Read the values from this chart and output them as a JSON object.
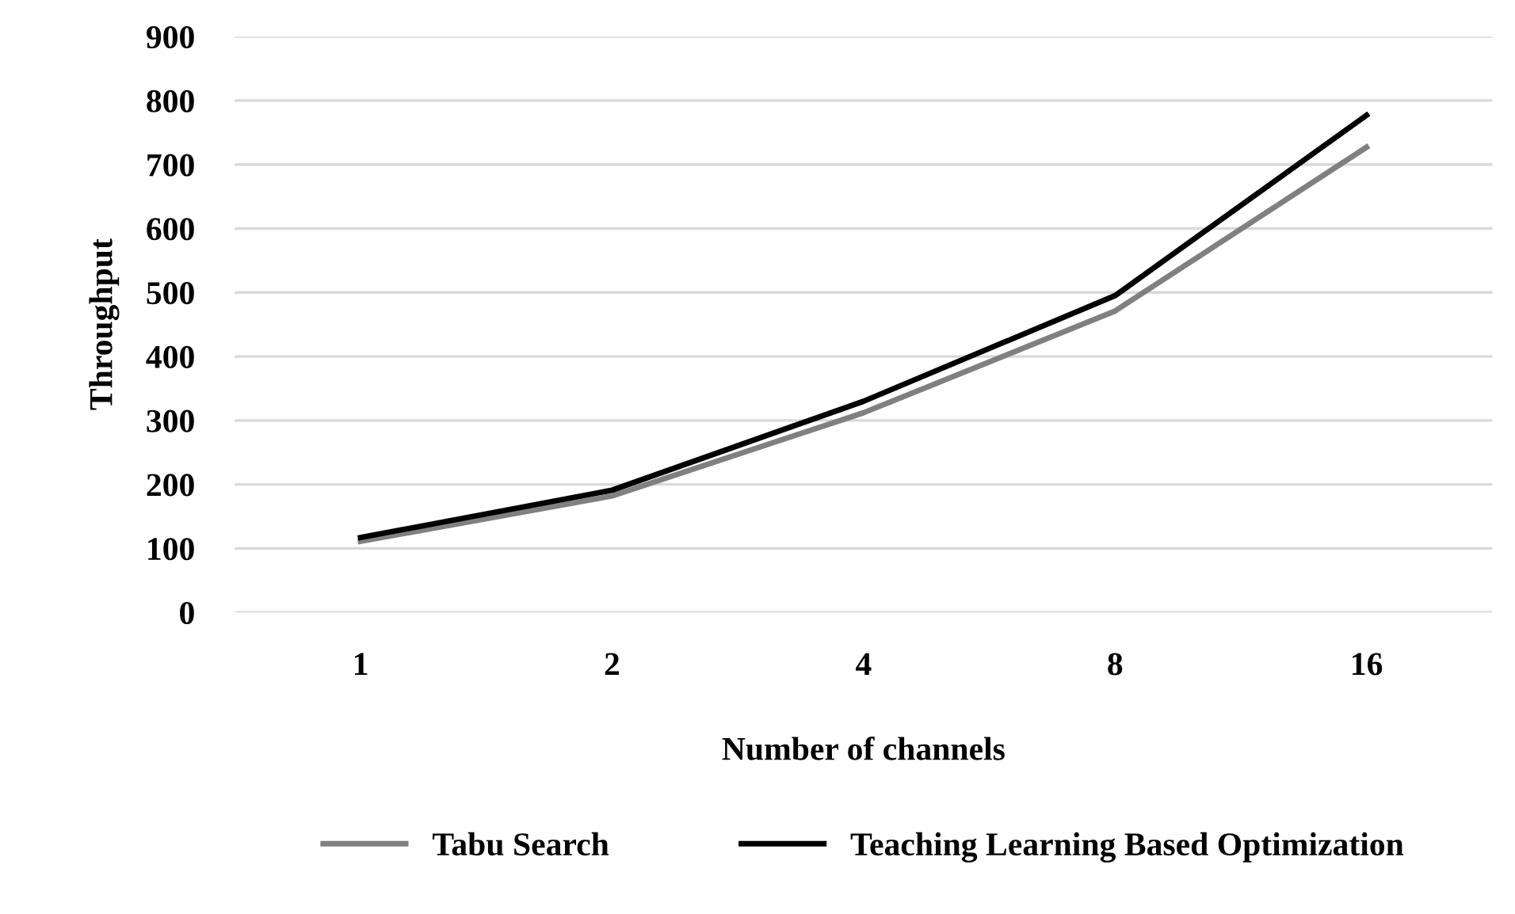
{
  "chart_data": {
    "type": "line",
    "xlabel": "Number of channels",
    "ylabel": "Throughput",
    "categories": [
      "1",
      "2",
      "4",
      "8",
      "16"
    ],
    "series": [
      {
        "name": "Tabu Search",
        "color": "#808080",
        "values": [
          111,
          182,
          312,
          471,
          727
        ]
      },
      {
        "name": "Teaching Learning Based Optimization",
        "color": "#000000",
        "values": [
          117,
          191,
          330,
          495,
          777
        ]
      }
    ],
    "ylim": [
      0,
      900
    ],
    "yticks": [
      0,
      100,
      200,
      300,
      400,
      500,
      600,
      700,
      800,
      900
    ],
    "grid": "y",
    "legend": "bottom",
    "marker": "none",
    "line_style": "solid"
  }
}
